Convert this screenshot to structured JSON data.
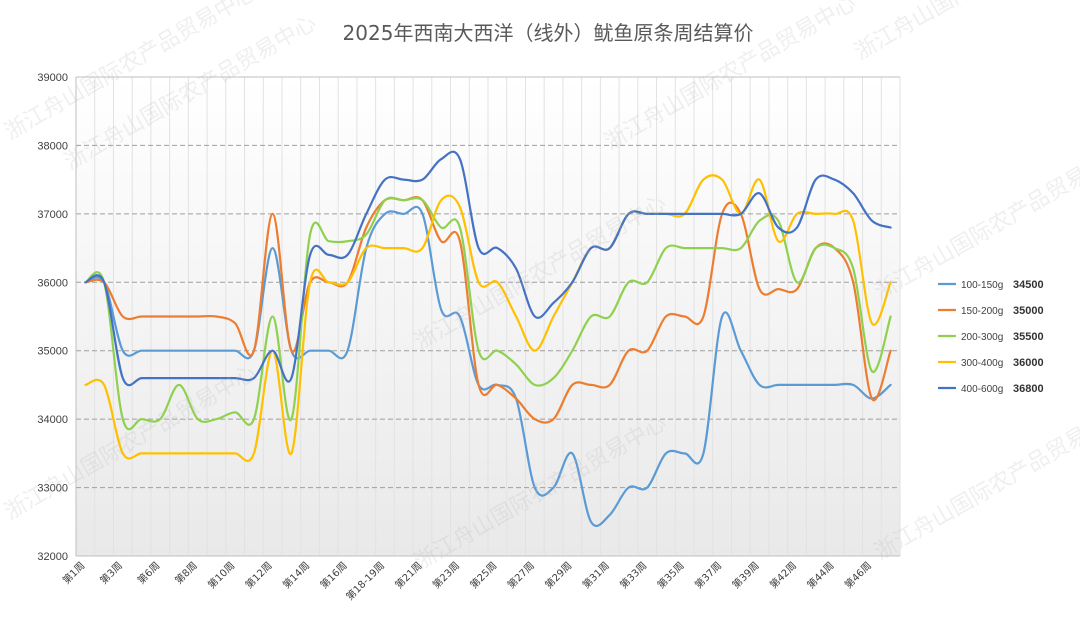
{
  "chart_data": {
    "type": "line",
    "title": "2025年西南大西洋（线外）鱿鱼原条周结算价",
    "xlabel": "",
    "ylabel": "",
    "ylim": [
      32000,
      39000
    ],
    "yticks": [
      32000,
      33000,
      34000,
      35000,
      36000,
      37000,
      38000,
      39000
    ],
    "grid": true,
    "legend_position": "right",
    "x_tick_labels": [
      "第1周",
      "第3周",
      "第6周",
      "第8周",
      "第10周",
      "第12周",
      "第14周",
      "第16周",
      "第18-19周",
      "第21周",
      "第23周",
      "第25周",
      "第27周",
      "第29周",
      "第31周",
      "第33周",
      "第35周",
      "第37周",
      "第39周",
      "第42周",
      "第44周",
      "第46周"
    ],
    "series": [
      {
        "name": "100-150g",
        "latest": "34500",
        "color": "#5b9bd5",
        "values": [
          36000,
          36000,
          35000,
          35000,
          35000,
          35000,
          35000,
          35000,
          35000,
          35000,
          36500,
          35000,
          35000,
          35000,
          35000,
          36500,
          37000,
          37000,
          37000,
          35600,
          35500,
          34500,
          34500,
          34300,
          33000,
          33000,
          33500,
          32500,
          32600,
          33000,
          33000,
          33500,
          33500,
          33500,
          35500,
          35000,
          34500,
          34500,
          34500,
          34500,
          34500,
          34500,
          34300,
          34500
        ]
      },
      {
        "name": "150-200g",
        "latest": "35000",
        "color": "#ed7d31",
        "values": [
          36000,
          36000,
          35500,
          35500,
          35500,
          35500,
          35500,
          35500,
          35400,
          35000,
          37000,
          35000,
          36000,
          36000,
          36000,
          36800,
          37200,
          37200,
          37200,
          36600,
          36600,
          34500,
          34500,
          34300,
          34000,
          34000,
          34500,
          34500,
          34500,
          35000,
          35000,
          35500,
          35500,
          35500,
          37000,
          37000,
          35900,
          35900,
          35900,
          36500,
          36500,
          36000,
          34300,
          35000
        ]
      },
      {
        "name": "200-300g",
        "latest": "35500",
        "color": "#8fd14f",
        "values": [
          36000,
          36000,
          34000,
          34000,
          34000,
          34500,
          34000,
          34000,
          34100,
          34000,
          35500,
          34000,
          36700,
          36600,
          36600,
          36700,
          37200,
          37200,
          37200,
          36800,
          36800,
          35000,
          35000,
          34800,
          34500,
          34600,
          35000,
          35500,
          35500,
          36000,
          36000,
          36500,
          36500,
          36500,
          36500,
          36500,
          36900,
          36900,
          36000,
          36500,
          36500,
          36200,
          34700,
          35500
        ]
      },
      {
        "name": "300-400g",
        "latest": "36000",
        "color": "#ffc000",
        "values": [
          34500,
          34500,
          33500,
          33500,
          33500,
          33500,
          33500,
          33500,
          33500,
          33500,
          35000,
          33500,
          36000,
          36000,
          36000,
          36500,
          36500,
          36500,
          36500,
          37200,
          37100,
          36000,
          36000,
          35500,
          35000,
          35500,
          36000,
          36500,
          36500,
          37000,
          37000,
          37000,
          37000,
          37500,
          37500,
          37000,
          37500,
          36600,
          37000,
          37000,
          37000,
          36900,
          35400,
          36000
        ]
      },
      {
        "name": "400-600g",
        "latest": "36800",
        "color": "#4472c4",
        "values": [
          36000,
          36000,
          34600,
          34600,
          34600,
          34600,
          34600,
          34600,
          34600,
          34600,
          35000,
          34600,
          36400,
          36400,
          36400,
          37000,
          37500,
          37500,
          37500,
          37800,
          37800,
          36500,
          36500,
          36200,
          35500,
          35700,
          36000,
          36500,
          36500,
          37000,
          37000,
          37000,
          37000,
          37000,
          37000,
          37000,
          37300,
          36800,
          36800,
          37500,
          37500,
          37300,
          36900,
          36800
        ]
      }
    ]
  },
  "watermark": "浙江舟山国际农产品贸易中心"
}
